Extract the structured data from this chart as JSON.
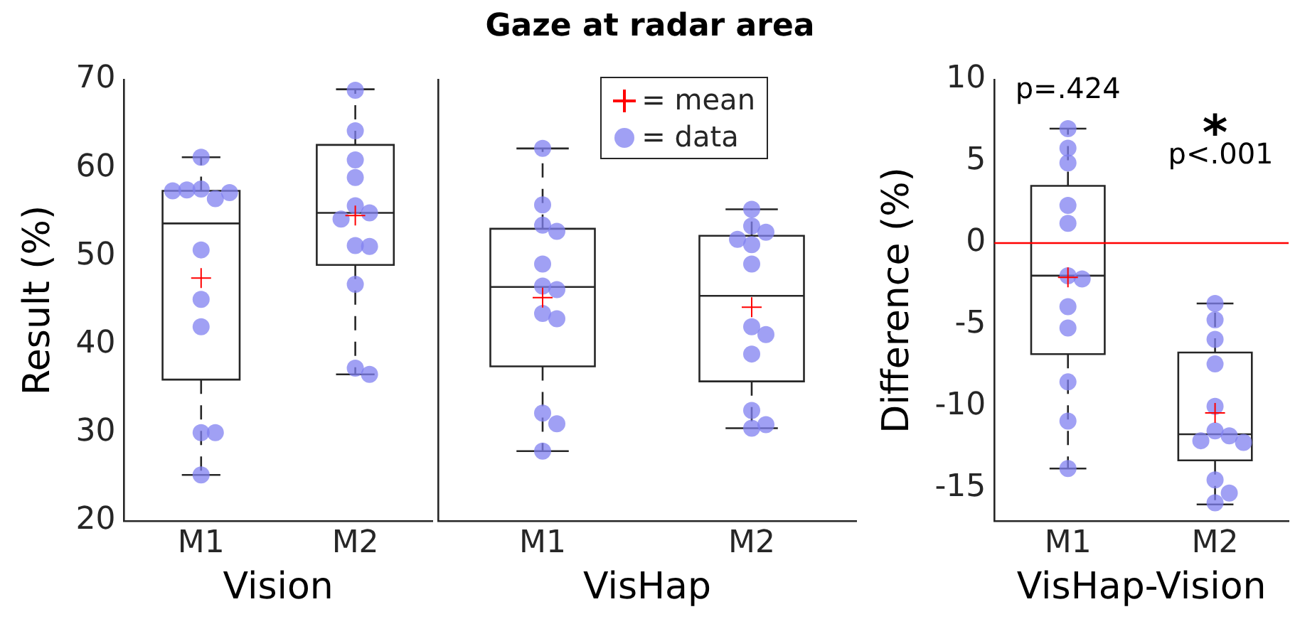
{
  "chart_data": [
    {
      "type": "box",
      "ylabel": "Result (%)",
      "xlabel": "Vision",
      "categories": [
        "M1",
        "M2"
      ],
      "ylim": [
        20,
        70
      ],
      "yticks": [
        20,
        30,
        40,
        50,
        60,
        70
      ],
      "grid": false,
      "series": [
        {
          "type": "box",
          "color": "#262626",
          "boxes": [
            {
              "low": 25.2,
              "q1": 36.0,
              "median": 53.7,
              "q3": 57.4,
              "high": 61.2
            },
            {
              "low": 36.6,
              "q1": 49.0,
              "median": 54.9,
              "q3": 62.6,
              "high": 68.9
            }
          ]
        },
        {
          "type": "scatter",
          "color": "#ff0000",
          "marker": "cross",
          "x": [
            "M1",
            "M2"
          ],
          "values": [
            47.5,
            54.6
          ]
        },
        {
          "type": "scatter",
          "color": "#8080f0",
          "marker": "circle",
          "x": [
            "M1",
            "M1",
            "M1",
            "M1",
            "M1",
            "M1",
            "M1",
            "M1",
            "M1",
            "M1",
            "M1",
            "M1",
            "M2",
            "M2",
            "M2",
            "M2",
            "M2",
            "M2",
            "M2",
            "M2",
            "M2",
            "M2",
            "M2",
            "M2"
          ],
          "values": [
            61.2,
            57.6,
            56.5,
            57.5,
            57.2,
            57.4,
            50.7,
            45.1,
            42.0,
            30.0,
            30.0,
            25.2,
            68.8,
            64.2,
            60.9,
            58.9,
            55.7,
            54.9,
            54.2,
            51.2,
            51.1,
            46.8,
            37.3,
            36.6
          ]
        }
      ]
    },
    {
      "type": "box",
      "title": "Gaze at radar area",
      "xlabel": "VisHap",
      "categories": [
        "M1",
        "M2"
      ],
      "ylim": [
        20,
        70
      ],
      "yticks": [
        20,
        30,
        40,
        50,
        60,
        70
      ],
      "tick_labels": "x",
      "grid": false,
      "legend": "top right",
      "series": [
        {
          "type": "box",
          "color": "#262626",
          "boxes": [
            {
              "low": 27.9,
              "q1": 37.5,
              "median": 46.5,
              "q3": 53.1,
              "high": 62.2
            },
            {
              "low": 30.5,
              "q1": 35.8,
              "median": 45.5,
              "q3": 52.3,
              "high": 55.3
            }
          ]
        },
        {
          "type": "scatter",
          "name": "= mean",
          "color": "#ff0000",
          "marker": "cross",
          "x": [
            "M1",
            "M2"
          ],
          "values": [
            45.3,
            44.2
          ]
        },
        {
          "type": "scatter",
          "name": "= data",
          "color": "#8080f0",
          "marker": "circle",
          "x": [
            "M1",
            "M1",
            "M1",
            "M1",
            "M1",
            "M1",
            "M1",
            "M1",
            "M1",
            "M1",
            "M1",
            "M1",
            "M2",
            "M2",
            "M2",
            "M2",
            "M2",
            "M2",
            "M2",
            "M2",
            "M2",
            "M2",
            "M2",
            "M2"
          ],
          "values": [
            62.2,
            55.8,
            53.5,
            52.8,
            49.1,
            46.6,
            46.2,
            43.5,
            42.9,
            32.2,
            31.0,
            27.9,
            55.3,
            53.4,
            52.7,
            51.9,
            51.3,
            49.1,
            42.0,
            41.1,
            38.9,
            32.5,
            30.9,
            30.5
          ]
        }
      ]
    },
    {
      "type": "box",
      "ylabel": "Difference (%)",
      "xlabel": "VisHap-Vision",
      "categories": [
        "M1",
        "M2"
      ],
      "ylim": [
        -17,
        10
      ],
      "yticks": [
        -15,
        -10,
        -5,
        0,
        5,
        10
      ],
      "grid": false,
      "ref_lines": [
        {
          "axis": "y",
          "value": 0,
          "color": "#ff0000"
        }
      ],
      "annotations": [
        "p=.424",
        "*",
        "p<.001"
      ],
      "series": [
        {
          "type": "box",
          "color": "#262626",
          "boxes": [
            {
              "low": -13.8,
              "q1": -6.8,
              "median": -2.0,
              "q3": 3.5,
              "high": 7.0
            },
            {
              "low": -16.0,
              "q1": -13.3,
              "median": -11.7,
              "q3": -6.7,
              "high": -3.7
            }
          ]
        },
        {
          "type": "scatter",
          "color": "#ff0000",
          "marker": "cross",
          "x": [
            "M1",
            "M2"
          ],
          "values": [
            -2.1,
            -10.4
          ]
        },
        {
          "type": "scatter",
          "color": "#8080f0",
          "marker": "circle",
          "x": [
            "M1",
            "M1",
            "M1",
            "M1",
            "M1",
            "M1",
            "M1",
            "M1",
            "M1",
            "M1",
            "M1",
            "M1",
            "M2",
            "M2",
            "M2",
            "M2",
            "M2",
            "M2",
            "M2",
            "M2",
            "M2",
            "M2",
            "M2",
            "M2"
          ],
          "values": [
            7.0,
            5.8,
            4.9,
            2.3,
            1.2,
            -2.0,
            -2.2,
            -3.9,
            -5.2,
            -8.5,
            -10.9,
            -13.8,
            -3.7,
            -4.7,
            -5.9,
            -7.4,
            -10.0,
            -11.5,
            -11.8,
            -12.1,
            -12.2,
            -14.5,
            -15.3,
            -15.9
          ]
        }
      ]
    }
  ]
}
